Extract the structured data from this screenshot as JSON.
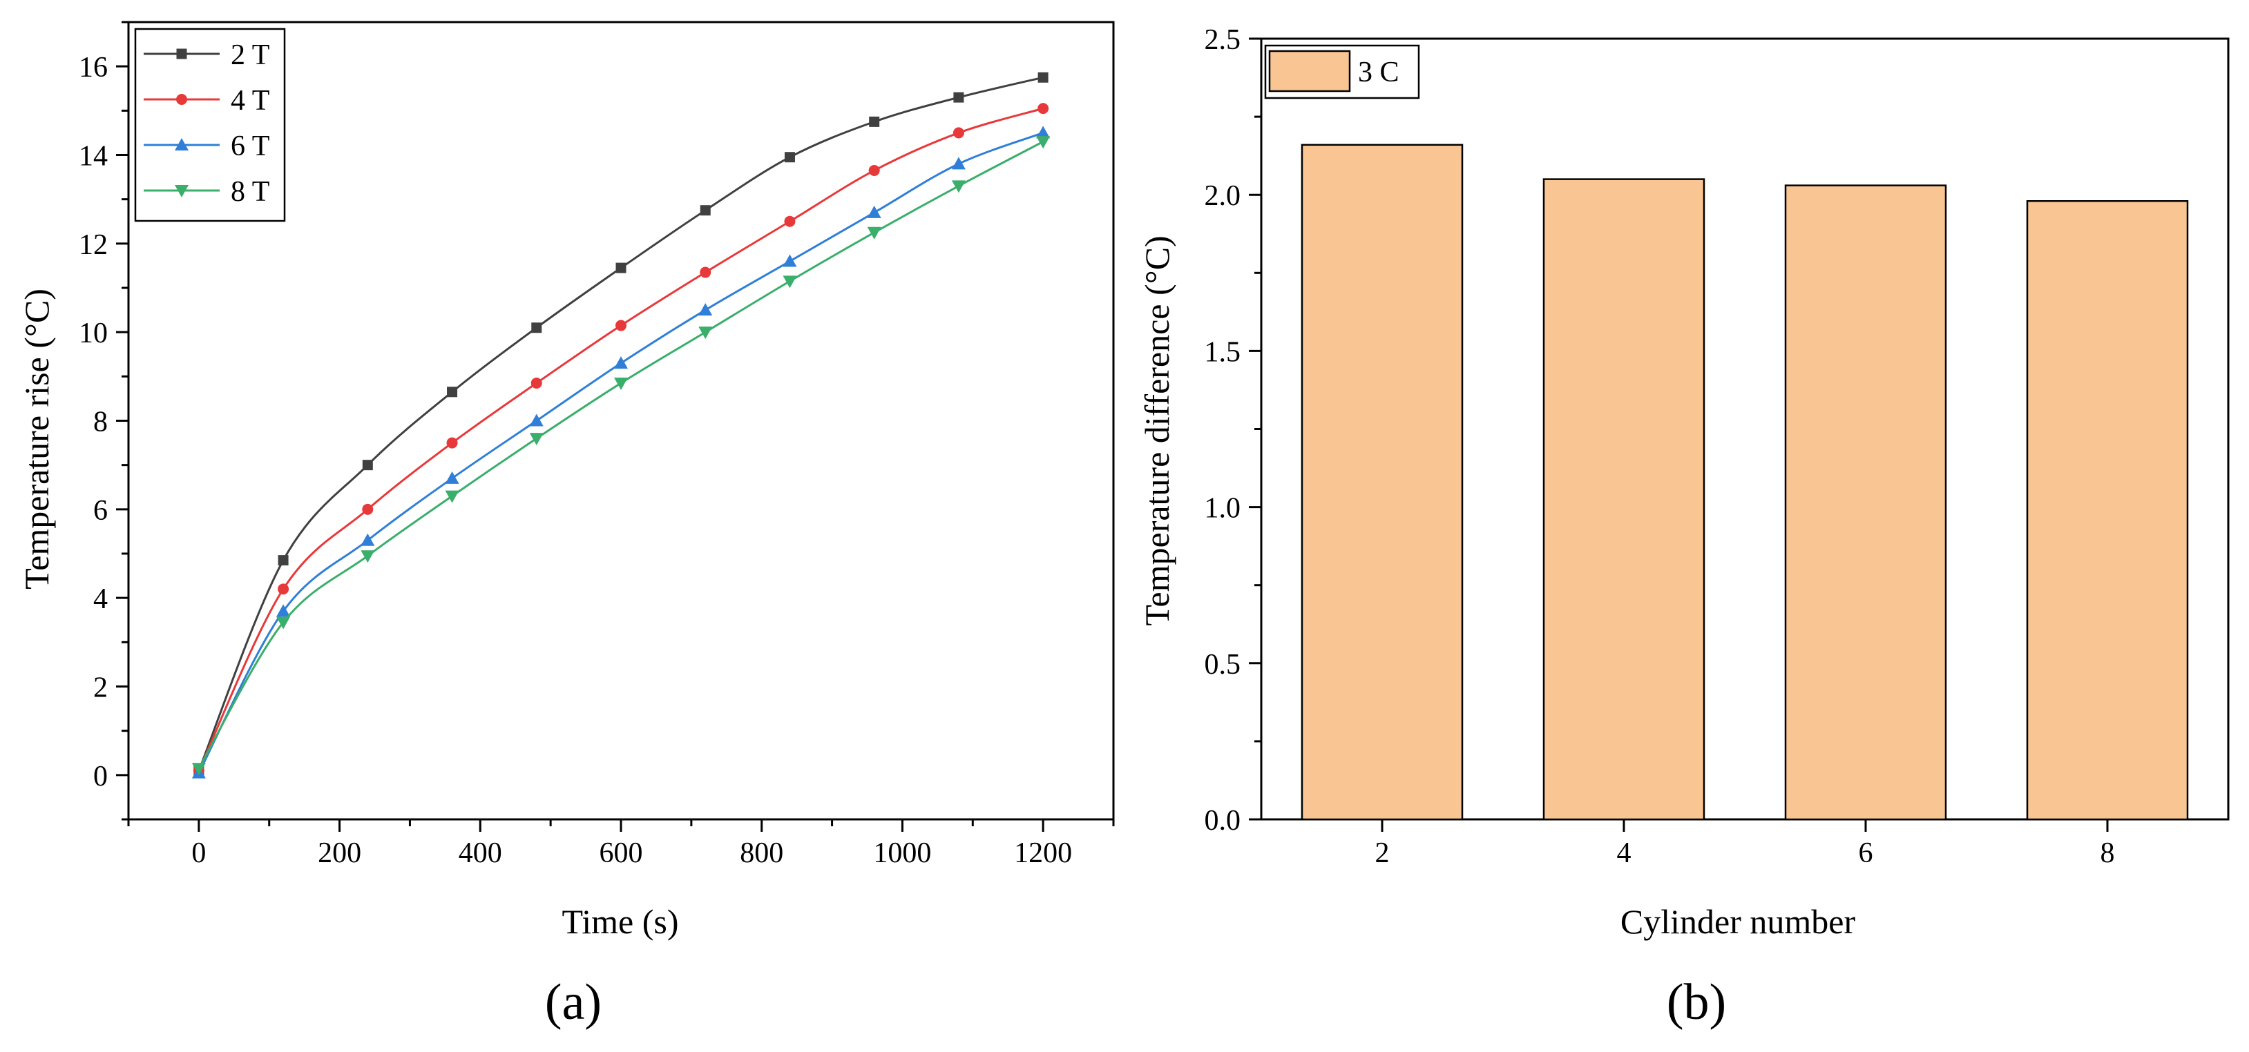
{
  "panel_labels": {
    "a": "(a)",
    "b": "(b)"
  },
  "chart_data": [
    {
      "id": "a",
      "type": "line",
      "title": "",
      "xlabel": "Time (s)",
      "ylabel": "Temperature rise (°C)",
      "xlim": [
        -100,
        1300
      ],
      "ylim": [
        -1,
        17
      ],
      "xticks": [
        0,
        200,
        400,
        600,
        800,
        1000,
        1200
      ],
      "yticks": [
        0,
        2,
        4,
        6,
        8,
        10,
        12,
        14,
        16
      ],
      "grid": false,
      "legend_position": "top-left",
      "series": [
        {
          "name": "2 T",
          "color": "#404040",
          "marker": "square",
          "x": [
            0,
            120,
            240,
            360,
            480,
            600,
            720,
            840,
            960,
            1080,
            1200
          ],
          "y": [
            0.1,
            4.85,
            7.0,
            8.65,
            10.1,
            11.45,
            12.75,
            13.95,
            14.75,
            15.3,
            15.75
          ]
        },
        {
          "name": "4 T",
          "color": "#e8393a",
          "marker": "circle",
          "x": [
            0,
            120,
            240,
            360,
            480,
            600,
            720,
            840,
            960,
            1080,
            1200
          ],
          "y": [
            0.1,
            4.2,
            6.0,
            7.5,
            8.85,
            10.15,
            11.35,
            12.5,
            13.65,
            14.5,
            15.05
          ]
        },
        {
          "name": "6 T",
          "color": "#2f7fd8",
          "marker": "triangle-up",
          "x": [
            0,
            120,
            240,
            360,
            480,
            600,
            720,
            840,
            960,
            1080,
            1200
          ],
          "y": [
            0.05,
            3.7,
            5.3,
            6.7,
            8.0,
            9.3,
            10.5,
            11.6,
            12.7,
            13.8,
            14.5
          ]
        },
        {
          "name": "8 T",
          "color": "#3aae6b",
          "marker": "triangle-down",
          "x": [
            0,
            120,
            240,
            360,
            480,
            600,
            720,
            840,
            960,
            1080,
            1200
          ],
          "y": [
            0.15,
            3.45,
            4.95,
            6.3,
            7.6,
            8.85,
            10.0,
            11.15,
            12.25,
            13.3,
            14.3
          ]
        }
      ]
    },
    {
      "id": "b",
      "type": "bar",
      "title": "",
      "xlabel": "Cylinder number",
      "ylabel": "Temperature difference (°C)",
      "categories": [
        "2",
        "4",
        "6",
        "8"
      ],
      "ylim": [
        0,
        2.5
      ],
      "yticks": [
        0.0,
        0.5,
        1.0,
        1.5,
        2.0,
        2.5
      ],
      "grid": false,
      "legend_position": "top-left",
      "series": [
        {
          "name": "3 C",
          "color": "#f9c593",
          "values": [
            2.16,
            2.05,
            2.03,
            1.98
          ]
        }
      ]
    }
  ]
}
